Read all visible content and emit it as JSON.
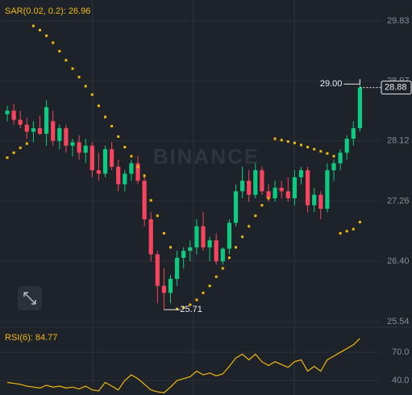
{
  "chart_data": [
    {
      "type": "candlestick",
      "indicator_label": "SAR(0.02, 0.2): 26.96",
      "watermark": "BINANCE",
      "categories": [
        null,
        null,
        null,
        null,
        null,
        null,
        null,
        null,
        null,
        null,
        null,
        null,
        null,
        null,
        null,
        null,
        null,
        null,
        null,
        null,
        null,
        null,
        null,
        null,
        null,
        null,
        null,
        null,
        null,
        null,
        null,
        null,
        null,
        null,
        null,
        null,
        null,
        null,
        null,
        null,
        null,
        null,
        null,
        null,
        null,
        null,
        null,
        null,
        null,
        null,
        null,
        null,
        null,
        null,
        null
      ],
      "open": [
        28.5,
        28.55,
        28.42,
        28.35,
        28.25,
        28.3,
        28.22,
        28.4,
        28.12,
        28.3,
        28.05,
        28.1,
        27.95,
        28.05,
        27.7,
        27.65,
        28.0,
        27.75,
        27.5,
        27.65,
        27.8,
        27.55,
        27.0,
        26.5,
        26.05,
        25.95,
        26.15,
        26.45,
        26.55,
        26.6,
        26.9,
        26.6,
        26.7,
        26.4,
        26.58,
        26.95,
        27.4,
        27.55,
        27.35,
        27.7,
        27.4,
        27.3,
        27.45,
        27.4,
        27.3,
        27.6,
        27.7,
        27.2,
        27.35,
        27.15,
        27.7,
        27.8,
        27.95,
        28.15,
        28.3
      ],
      "high": [
        28.62,
        28.65,
        28.55,
        28.45,
        28.4,
        28.48,
        28.7,
        28.55,
        28.35,
        28.35,
        28.15,
        28.2,
        28.15,
        28.1,
        27.95,
        28.05,
        28.1,
        27.85,
        27.7,
        27.85,
        27.9,
        27.65,
        27.1,
        26.55,
        26.3,
        26.2,
        26.55,
        26.6,
        26.7,
        27.0,
        27.1,
        26.75,
        26.8,
        26.6,
        27.0,
        27.5,
        27.75,
        27.7,
        27.8,
        27.75,
        27.5,
        27.55,
        27.55,
        27.6,
        27.7,
        27.75,
        27.75,
        27.45,
        27.4,
        27.8,
        27.85,
        28.0,
        28.2,
        28.4,
        29.0
      ],
      "low": [
        28.4,
        28.35,
        28.3,
        28.15,
        28.1,
        28.2,
        28.05,
        28.05,
        28.0,
        27.95,
        27.9,
        27.85,
        27.8,
        27.6,
        27.55,
        27.6,
        27.7,
        27.4,
        27.4,
        27.55,
        27.5,
        26.9,
        26.4,
        25.8,
        25.71,
        25.8,
        26.05,
        26.3,
        26.4,
        26.5,
        26.55,
        26.4,
        26.35,
        26.35,
        26.5,
        26.9,
        27.3,
        27.25,
        27.3,
        27.35,
        27.25,
        27.25,
        27.3,
        27.25,
        27.2,
        27.5,
        27.1,
        27.1,
        27.0,
        27.1,
        27.55,
        27.7,
        27.85,
        28.05,
        28.25
      ],
      "close": [
        28.55,
        28.42,
        28.35,
        28.25,
        28.3,
        28.22,
        28.6,
        28.12,
        28.3,
        28.05,
        28.1,
        27.95,
        28.05,
        27.7,
        27.65,
        28.0,
        27.75,
        27.5,
        27.65,
        27.8,
        27.55,
        27.0,
        26.5,
        26.05,
        25.95,
        26.15,
        26.45,
        26.55,
        26.6,
        26.9,
        26.6,
        26.7,
        26.4,
        26.58,
        26.95,
        27.4,
        27.55,
        27.35,
        27.7,
        27.4,
        27.3,
        27.45,
        27.4,
        27.3,
        27.6,
        27.7,
        27.2,
        27.35,
        27.15,
        27.7,
        27.8,
        27.95,
        28.15,
        28.3,
        28.88
      ],
      "sar": {
        "color": "#f0b90b",
        "values": [
          27.88,
          27.95,
          28.02,
          28.08,
          29.76,
          29.7,
          29.62,
          29.52,
          29.4,
          29.27,
          29.15,
          29.03,
          28.9,
          28.78,
          28.62,
          28.46,
          28.33,
          28.18,
          28.03,
          27.9,
          27.75,
          27.62,
          27.27,
          27.05,
          26.8,
          26.6,
          25.72,
          25.74,
          25.78,
          25.85,
          25.95,
          26.05,
          26.18,
          26.3,
          26.45,
          26.6,
          26.75,
          26.9,
          27.05,
          27.2,
          27.3,
          28.15,
          28.13,
          28.11,
          28.09,
          28.06,
          28.03,
          28.0,
          27.97,
          27.94,
          27.9,
          26.8,
          26.83,
          26.86,
          26.96
        ]
      },
      "up_color": "#0ecb81",
      "down_color": "#f6465d",
      "ylim": [
        25.47,
        30.13
      ],
      "yticks": [
        29.83,
        28.97,
        28.12,
        27.26,
        {
          "value": 26.4,
          "label": "26.40"
        },
        25.54
      ],
      "grid": true,
      "last_price": 28.88,
      "high_label": {
        "value": 29,
        "label": "29.00"
      },
      "low_label": {
        "value": 25.71,
        "label": "25.71"
      }
    },
    {
      "type": "line",
      "title": "RSI(6): 84.77",
      "color": "#f0b90b",
      "values": [
        38,
        37,
        36,
        34,
        33,
        32,
        35,
        33,
        34,
        32,
        33,
        31,
        34,
        30,
        29,
        38,
        34,
        30,
        40,
        46,
        42,
        36,
        30,
        28,
        27,
        33,
        40,
        42,
        44,
        50,
        46,
        48,
        45,
        47,
        55,
        64,
        68,
        62,
        68,
        60,
        56,
        60,
        57,
        54,
        60,
        62,
        50,
        55,
        50,
        62,
        66,
        70,
        74,
        78,
        84.77
      ],
      "ylim": [
        24.6,
        94.9
      ],
      "yticks": [
        {
          "value": 70,
          "label": "70.0"
        },
        {
          "value": 40,
          "label": "40.0"
        }
      ],
      "grid": true
    }
  ]
}
